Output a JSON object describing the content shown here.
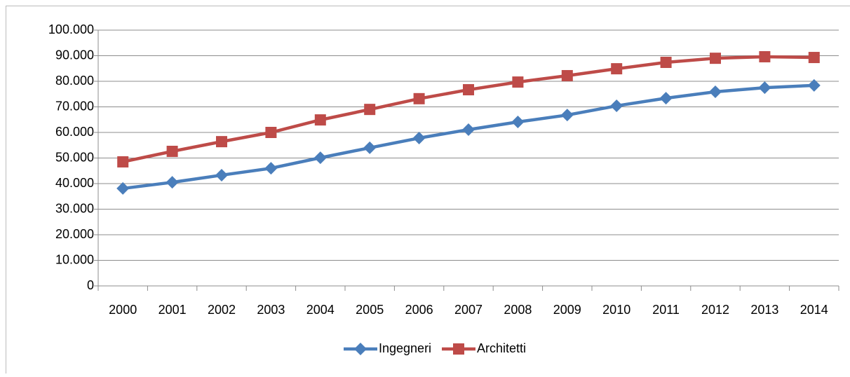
{
  "chart_data": {
    "type": "line",
    "categories": [
      "2000",
      "2001",
      "2002",
      "2003",
      "2004",
      "2005",
      "2006",
      "2007",
      "2008",
      "2009",
      "2010",
      "2011",
      "2012",
      "2013",
      "2014"
    ],
    "series": [
      {
        "name": "Ingegneri",
        "color": "#4a7ebb",
        "marker": "diamond",
        "values": [
          38100,
          40500,
          43300,
          46000,
          50100,
          54000,
          57800,
          61100,
          64100,
          66800,
          70400,
          73400,
          75900,
          77500,
          78400
        ]
      },
      {
        "name": "Architetti",
        "color": "#be4b48",
        "marker": "square",
        "values": [
          48500,
          52600,
          56400,
          60000,
          64900,
          69000,
          73200,
          76700,
          79700,
          82200,
          84900,
          87400,
          89000,
          89600,
          89300
        ]
      }
    ],
    "ylim": [
      0,
      100000
    ],
    "yticks": [
      0,
      {
        "value": 10000,
        "label": "10.000"
      },
      {
        "value": 20000,
        "label": "20.000"
      },
      {
        "value": 30000,
        "label": "30.000"
      },
      {
        "value": 40000,
        "label": "40.000"
      },
      {
        "value": 50000,
        "label": "50.000"
      },
      {
        "value": 60000,
        "label": "60.000"
      },
      {
        "value": 70000,
        "label": "70.000"
      },
      {
        "value": 80000,
        "label": "80.000"
      },
      {
        "value": 90000,
        "label": "90.000"
      },
      {
        "value": 100000,
        "label": "100.000"
      }
    ],
    "grid": true,
    "legend": "bottom"
  }
}
